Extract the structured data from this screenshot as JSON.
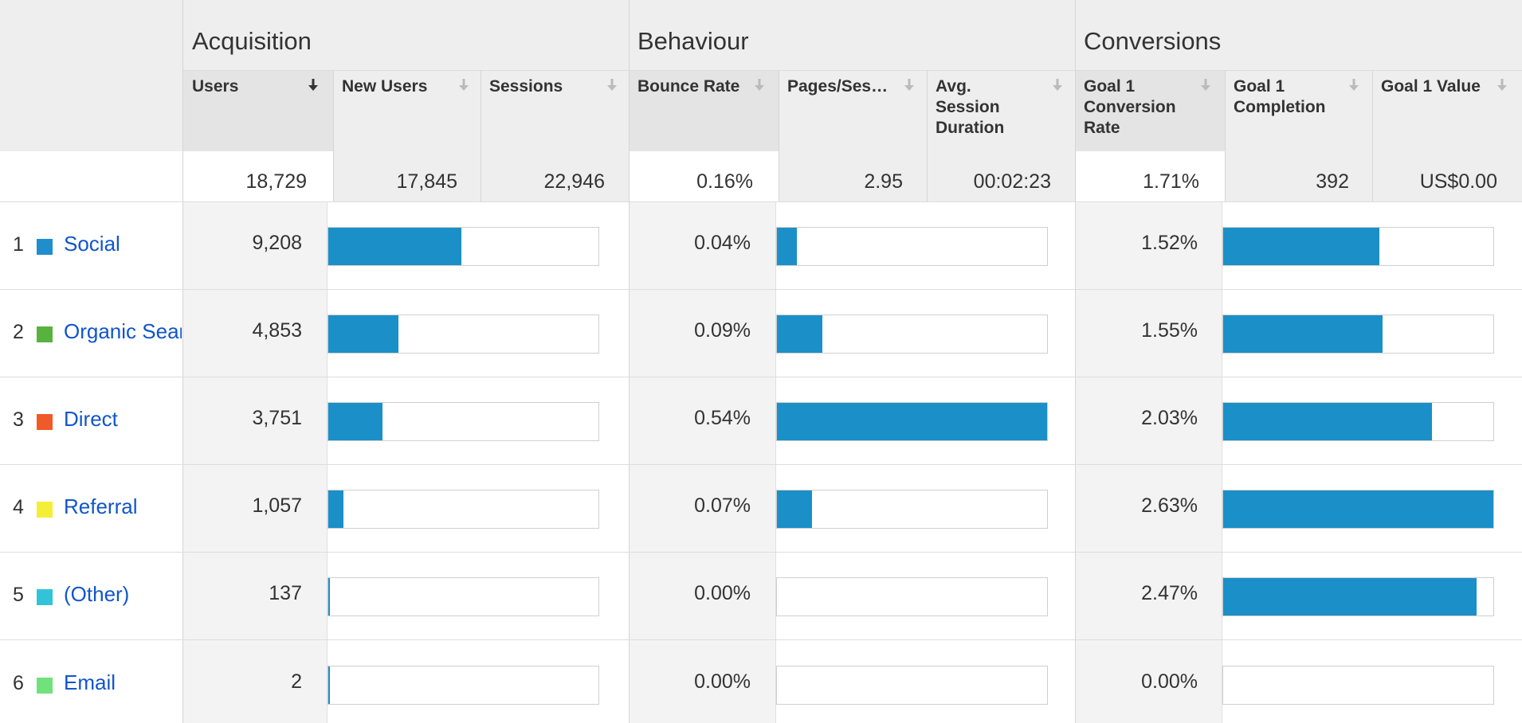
{
  "groups": {
    "acquisition": "Acquisition",
    "behaviour": "Behaviour",
    "conversions": "Conversions"
  },
  "columns": {
    "users": "Users",
    "new_users": "New Users",
    "sessions": "Sessions",
    "bounce_rate": "Bounce Rate",
    "pages_per_session": "Pages/Ses…",
    "avg_session_duration": "Avg. Session Duration",
    "goal1_conversion_rate": "Goal 1 Conversion Rate",
    "goal1_completion": "Goal 1 Completion",
    "goal1_value": "Goal 1 Value"
  },
  "totals": {
    "users": "18,729",
    "new_users": "17,845",
    "sessions": "22,946",
    "bounce_rate": "0.16%",
    "pages_per_session": "2.95",
    "avg_session_duration": "00:02:23",
    "goal1_conversion_rate": "1.71%",
    "goal1_completion": "392",
    "goal1_value": "US$0.00"
  },
  "rows": [
    {
      "num": "1",
      "channel": "Social",
      "users": "9,208",
      "bounce_rate": "0.04%",
      "conversion_rate": "1.52%"
    },
    {
      "num": "2",
      "channel": "Organic Sear",
      "users": "4,853",
      "bounce_rate": "0.09%",
      "conversion_rate": "1.55%"
    },
    {
      "num": "3",
      "channel": "Direct",
      "users": "3,751",
      "bounce_rate": "0.54%",
      "conversion_rate": "2.03%"
    },
    {
      "num": "4",
      "channel": "Referral",
      "users": "1,057",
      "bounce_rate": "0.07%",
      "conversion_rate": "2.63%"
    },
    {
      "num": "5",
      "channel": "(Other)",
      "users": "137",
      "bounce_rate": "0.00%",
      "conversion_rate": "2.47%"
    },
    {
      "num": "6",
      "channel": "Email",
      "users": "2",
      "bounce_rate": "0.00%",
      "conversion_rate": "0.00%"
    }
  ],
  "bar_fractions": {
    "users": [
      0.4916,
      0.2591,
      0.2003,
      0.0564,
      0.0073,
      0.0001
    ],
    "bounce_rate": [
      0.0741,
      0.1667,
      1.0,
      0.1296,
      0.0,
      0.0
    ],
    "conversion_rate": [
      0.5779,
      0.5894,
      0.7719,
      1.0,
      0.9392,
      0.0
    ]
  },
  "colors": {
    "bar": "#1a8fc8",
    "link": "#1155cc",
    "swatches": [
      "#1e8fcc",
      "#57b33e",
      "#f05a28",
      "#f4ee35",
      "#31c4d8",
      "#6fe27b"
    ]
  },
  "icons": {
    "sort_active": "arrow-down-dark-icon",
    "sort_inactive": "arrow-down-light-icon"
  }
}
